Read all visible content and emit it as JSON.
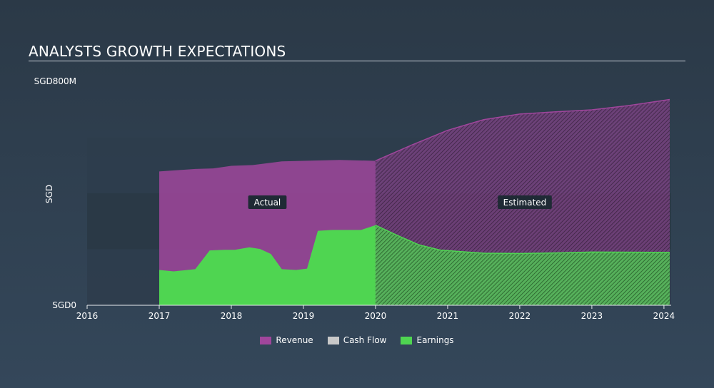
{
  "title": "ANALYSTS GROWTH EXPECTATIONS",
  "chart_data": {
    "type": "area",
    "title": "ANALYSTS GROWTH EXPECTATIONS",
    "ylabel": "SGD",
    "y_tick_labels": [
      "SGD0",
      "SGD800M"
    ],
    "ylim": [
      0,
      800
    ],
    "xlim": [
      2016,
      2024.1
    ],
    "x_ticks": [
      2016,
      2017,
      2018,
      2019,
      2020,
      2021,
      2022,
      2023,
      2024
    ],
    "split_x": 2020,
    "annotations": [
      "Actual",
      "Estimated"
    ],
    "series": [
      {
        "name": "Revenue",
        "color": "#a0469c",
        "points": [
          [
            2017,
            478
          ],
          [
            2017.5,
            487
          ],
          [
            2017.75,
            489
          ],
          [
            2018,
            498
          ],
          [
            2018.3,
            501
          ],
          [
            2018.7,
            514
          ],
          [
            2019,
            516
          ],
          [
            2019.5,
            519
          ],
          [
            2020,
            516
          ],
          [
            2020.5,
            572
          ],
          [
            2021,
            625
          ],
          [
            2021.5,
            663
          ],
          [
            2022,
            683
          ],
          [
            2022.5,
            691
          ],
          [
            2023,
            698
          ],
          [
            2023.5,
            713
          ],
          [
            2024.08,
            735
          ]
        ]
      },
      {
        "name": "Cash Flow",
        "color": "#c8c8c8",
        "points": []
      },
      {
        "name": "Earnings",
        "color": "#4fd551",
        "points": [
          [
            2017,
            126
          ],
          [
            2017.2,
            121
          ],
          [
            2017.5,
            129
          ],
          [
            2017.7,
            196
          ],
          [
            2017.9,
            198
          ],
          [
            2018.05,
            198
          ],
          [
            2018.25,
            207
          ],
          [
            2018.4,
            201
          ],
          [
            2018.55,
            183
          ],
          [
            2018.7,
            129
          ],
          [
            2018.9,
            126
          ],
          [
            2019.05,
            131
          ],
          [
            2019.2,
            266
          ],
          [
            2019.4,
            269
          ],
          [
            2019.6,
            269
          ],
          [
            2019.8,
            269
          ],
          [
            2020,
            286
          ],
          [
            2020.3,
            250
          ],
          [
            2020.6,
            216
          ],
          [
            2020.9,
            197
          ],
          [
            2021.5,
            186
          ],
          [
            2022,
            185
          ],
          [
            2022.5,
            187
          ],
          [
            2023,
            190
          ],
          [
            2024.08,
            189
          ]
        ]
      }
    ],
    "legend": [
      "Revenue",
      "Cash Flow",
      "Earnings"
    ]
  }
}
